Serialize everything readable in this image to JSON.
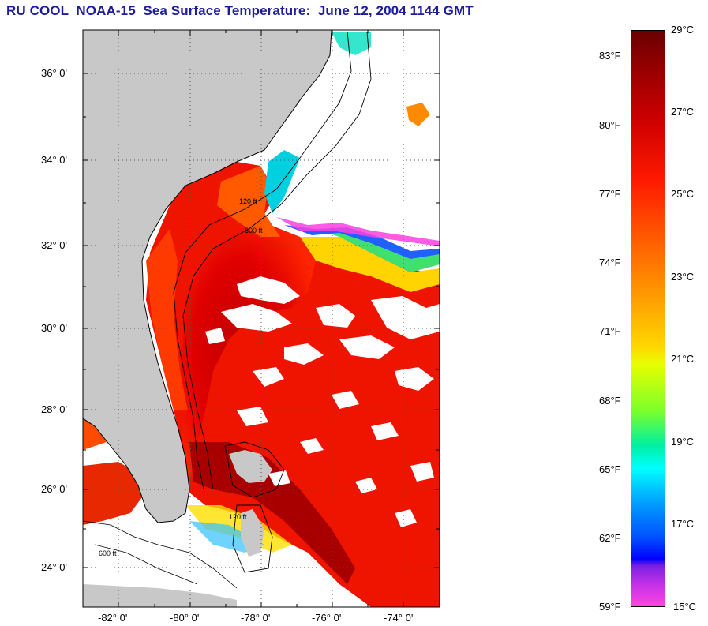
{
  "title": "RU COOL  NOAA-15  Sea Surface Temperature:  June 12, 2004 1144 GMT",
  "map": {
    "lon_range": [
      -83.0,
      -73.0
    ],
    "lat_range": [
      23.0,
      37.0
    ],
    "lat_ticks": [
      "36° 0'",
      "34° 0'",
      "32° 0'",
      "30° 0'",
      "28° 0'",
      "26° 0'",
      "24° 0'"
    ],
    "lon_ticks": [
      "-82° 0'",
      "-80° 0'",
      "-78° 0'",
      "-76° 0'",
      "-74° 0'"
    ],
    "grid": "dotted",
    "bathymetry_labels": [
      "120 ft",
      "600 ft"
    ],
    "colors": {
      "land": "#c8c8c8",
      "clouds": "#ffffff",
      "gulf_stream": "#c80000",
      "shelf": "#ff3b00"
    }
  },
  "colorbar": {
    "fahrenheit_labels": [
      "83°F",
      "80°F",
      "77°F",
      "74°F",
      "71°F",
      "68°F",
      "65°F",
      "62°F",
      "59°F"
    ],
    "celsius_labels": [
      "29°C",
      "27°C",
      "25°C",
      "23°C",
      "21°C",
      "19°C",
      "17°C",
      "15°C"
    ],
    "range_c": [
      15,
      29
    ]
  }
}
